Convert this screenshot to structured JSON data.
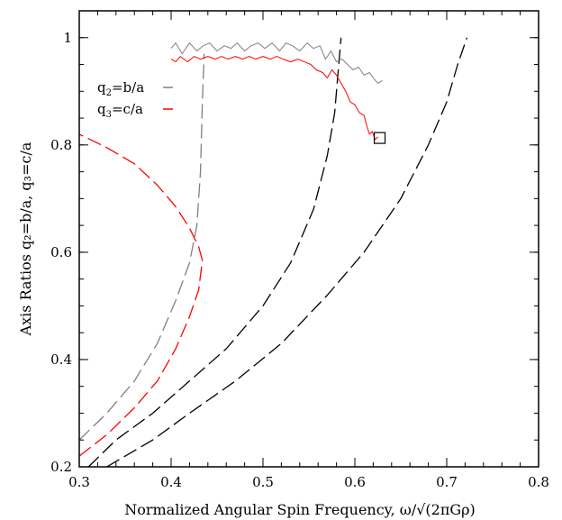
{
  "chart_data": {
    "type": "line",
    "title": "",
    "xlabel": "Normalized Angular Spin Frequency, ω/√(2πGρ)",
    "ylabel": "Axis Ratios q₂=b/a, q₃=c/a",
    "xlim": [
      0.3,
      0.8
    ],
    "ylim": [
      0.2,
      1.05
    ],
    "xticks": [
      0.3,
      0.4,
      0.5,
      0.6,
      0.7,
      0.8
    ],
    "yticks": [
      0.2,
      0.4,
      0.6,
      0.8,
      1.0
    ],
    "x_tick_labels": [
      "0.3",
      "0.4",
      "0.5",
      "0.6",
      "0.7",
      "0.8"
    ],
    "y_tick_labels": [
      "0.2",
      "0.4",
      "0.6",
      "0.8",
      "1"
    ],
    "grid": false,
    "legend": {
      "placement": "top-left",
      "entries": [
        {
          "q": "q",
          "sub": "2",
          "rest": "=b/a",
          "color": "#808080"
        },
        {
          "q": "q",
          "sub": "3",
          "rest": "=c/a",
          "color": "#ff0000"
        }
      ]
    },
    "series": [
      {
        "style": "long-dash",
        "color": "#808080",
        "x": [
          0.3,
          0.33,
          0.36,
          0.385,
          0.405,
          0.42,
          0.428,
          0.432,
          0.434,
          0.436
        ],
        "y": [
          0.25,
          0.3,
          0.36,
          0.43,
          0.51,
          0.58,
          0.65,
          0.75,
          0.88,
          0.97
        ]
      },
      {
        "style": "long-dash",
        "color": "#ff0000",
        "x": [
          0.3,
          0.33,
          0.36,
          0.385,
          0.405,
          0.42,
          0.43,
          0.434
        ],
        "y": [
          0.22,
          0.26,
          0.31,
          0.36,
          0.42,
          0.48,
          0.53,
          0.585
        ]
      },
      {
        "style": "long-dash",
        "color": "#ff0000",
        "x": [
          0.434,
          0.43,
          0.42,
          0.405,
          0.385,
          0.36,
          0.33,
          0.3
        ],
        "y": [
          0.585,
          0.61,
          0.645,
          0.685,
          0.725,
          0.765,
          0.795,
          0.82
        ]
      },
      {
        "style": "long-dash",
        "color": "#000000",
        "x": [
          0.31,
          0.34,
          0.38,
          0.42,
          0.46,
          0.5,
          0.53,
          0.555,
          0.57,
          0.578,
          0.582,
          0.585
        ],
        "y": [
          0.2,
          0.25,
          0.3,
          0.36,
          0.42,
          0.5,
          0.58,
          0.68,
          0.78,
          0.86,
          0.94,
          1.0
        ]
      },
      {
        "style": "long-dash",
        "color": "#000000",
        "x": [
          0.33,
          0.38,
          0.42,
          0.47,
          0.52,
          0.57,
          0.61,
          0.65,
          0.68,
          0.7,
          0.712,
          0.722
        ],
        "y": [
          0.2,
          0.25,
          0.3,
          0.36,
          0.43,
          0.52,
          0.6,
          0.7,
          0.8,
          0.88,
          0.95,
          1.0
        ]
      },
      {
        "style": "solid-noisy",
        "color": "#808080",
        "x": [
          0.4,
          0.405,
          0.412,
          0.42,
          0.428,
          0.435,
          0.442,
          0.45,
          0.458,
          0.465,
          0.472,
          0.48,
          0.487,
          0.495,
          0.502,
          0.51,
          0.518,
          0.525,
          0.532,
          0.54,
          0.548,
          0.555,
          0.562,
          0.568,
          0.574,
          0.58,
          0.586,
          0.592,
          0.598,
          0.604,
          0.61,
          0.616,
          0.62,
          0.625,
          0.63
        ],
        "y": [
          0.98,
          0.99,
          0.97,
          0.99,
          0.975,
          0.985,
          0.99,
          0.975,
          0.985,
          0.98,
          0.99,
          0.975,
          0.985,
          0.99,
          0.98,
          0.99,
          0.975,
          0.99,
          0.985,
          0.975,
          0.99,
          0.98,
          0.985,
          0.96,
          0.975,
          0.955,
          0.96,
          0.95,
          0.94,
          0.945,
          0.93,
          0.935,
          0.925,
          0.915,
          0.92
        ]
      },
      {
        "style": "solid-noisy",
        "color": "#ff0000",
        "x": [
          0.4,
          0.405,
          0.41,
          0.418,
          0.425,
          0.432,
          0.44,
          0.448,
          0.455,
          0.462,
          0.47,
          0.478,
          0.485,
          0.492,
          0.5,
          0.508,
          0.515,
          0.522,
          0.53,
          0.538,
          0.545,
          0.552,
          0.558,
          0.565,
          0.57,
          0.575,
          0.58,
          0.585,
          0.59,
          0.595,
          0.6,
          0.605,
          0.61,
          0.613,
          0.616,
          0.619,
          0.622,
          0.625
        ],
        "y": [
          0.96,
          0.955,
          0.965,
          0.955,
          0.965,
          0.96,
          0.965,
          0.96,
          0.965,
          0.96,
          0.965,
          0.96,
          0.965,
          0.96,
          0.965,
          0.96,
          0.965,
          0.96,
          0.955,
          0.96,
          0.955,
          0.95,
          0.94,
          0.935,
          0.925,
          0.94,
          0.93,
          0.915,
          0.9,
          0.88,
          0.875,
          0.86,
          0.855,
          0.835,
          0.82,
          0.825,
          0.81,
          0.815
        ]
      }
    ],
    "annotations": [
      {
        "type": "square-marker",
        "x": 0.627,
        "y": 0.813,
        "color": "#000000"
      }
    ]
  }
}
